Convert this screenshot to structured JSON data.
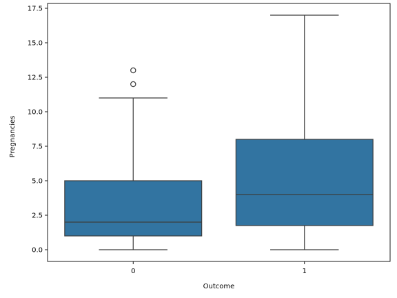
{
  "chart_data": {
    "type": "box",
    "xlabel": "Outcome",
    "ylabel": "Pregnancies",
    "ylim": [
      -0.85,
      17.85
    ],
    "yticks": [
      0.0,
      2.5,
      5.0,
      7.5,
      10.0,
      12.5,
      15.0,
      17.5
    ],
    "ytick_labels": [
      "0.0",
      "2.5",
      "5.0",
      "7.5",
      "10.0",
      "12.5",
      "15.0",
      "17.5"
    ],
    "categories": [
      "0",
      "1"
    ],
    "grid": false,
    "box_color": "#3274a1",
    "line_color": "#3d3d3d",
    "boxes": [
      {
        "category": "0",
        "whisker_low": 0,
        "q1": 1,
        "median": 2,
        "q3": 5,
        "whisker_high": 11,
        "outliers": [
          12,
          13
        ]
      },
      {
        "category": "1",
        "whisker_low": 0,
        "q1": 1.75,
        "median": 4,
        "q3": 8,
        "whisker_high": 17,
        "outliers": []
      }
    ]
  }
}
